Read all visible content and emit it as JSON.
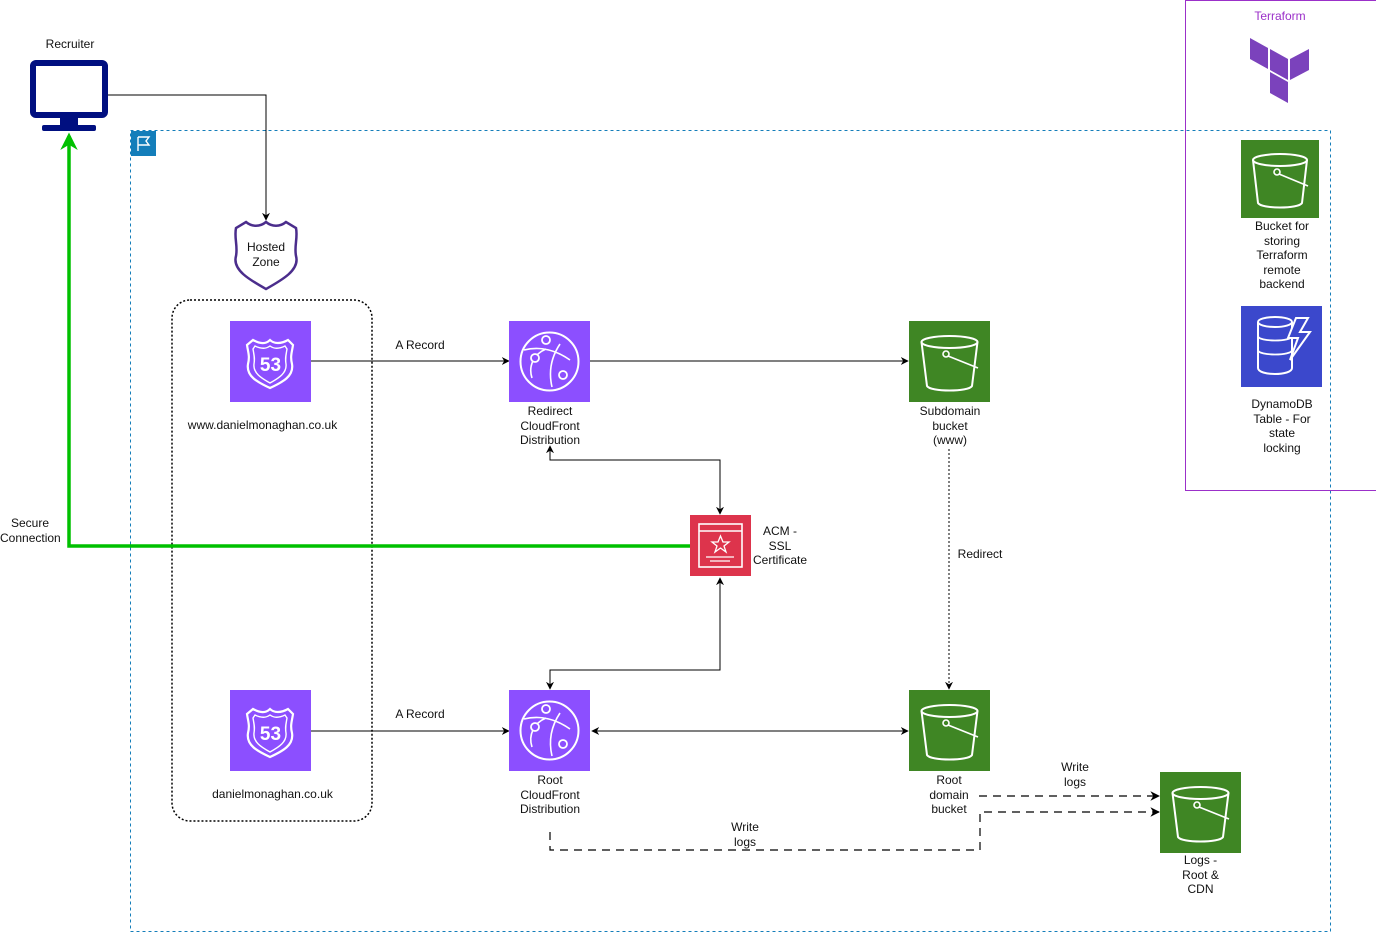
{
  "colors": {
    "route53": "#8c4fff",
    "cloudfront": "#8c4fff",
    "s3": "#3f8624",
    "acm": "#dd344c",
    "dynamodb": "#3b48cc",
    "terraform": "#7b42bc",
    "terraform_box": "#9b30c9",
    "secure_line": "#00c000",
    "recruiter": "#000f80",
    "group_border": "#147eba"
  },
  "labels": {
    "recruiter": "Recruiter",
    "hosted_zone": "Hosted\nZone",
    "www_domain": "www.danielmonaghan.co.uk",
    "root_domain": "danielmonaghan.co.uk",
    "redirect_cf": "Redirect\nCloudFront\nDistribution",
    "root_cf": "Root\nCloudFront\nDistribution",
    "subdomain_bucket": "Subdomain\nbucket\n(www)",
    "root_bucket": "Root\ndomain\nbucket",
    "logs_bucket": "Logs -\nRoot &\nCDN",
    "acm": "ACM -\nSSL\nCertificate",
    "secure_connection": "Secure\nConnection",
    "a_record_top": "A Record",
    "a_record_bottom": "A Record",
    "redirect": "Redirect",
    "write_logs_1": "Write\nlogs",
    "write_logs_2": "Write\nlogs",
    "terraform": "Terraform",
    "tf_bucket": "Bucket for\nstoring\nTerraform\nremote\nbackend",
    "dynamodb": "DynamoDB\nTable - For\nstate\nlocking",
    "route53_badge": "53"
  },
  "icons": {
    "recruiter": "monitor-icon",
    "hosted_zone": "shield-icon",
    "route53": "route53-icon",
    "cloudfront": "cloudfront-icon",
    "s3": "s3-bucket-icon",
    "acm": "certificate-icon",
    "dynamodb": "dynamodb-icon",
    "terraform": "terraform-logo",
    "region": "flag-icon"
  }
}
